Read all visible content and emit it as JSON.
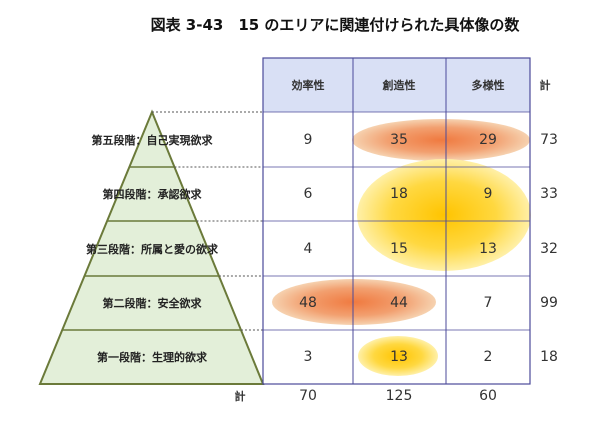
{
  "chart_data": {
    "type": "table",
    "title": "図表 3-43　15 のエリアに関連付けられた具体像の数",
    "columns": [
      "効率性",
      "創造性",
      "多様性"
    ],
    "total_label": "計",
    "rows": [
      {
        "label": "第五段階：自己実現欲求",
        "values": [
          9,
          35,
          29
        ],
        "total": 73
      },
      {
        "label": "第四段階：承認欲求",
        "values": [
          6,
          18,
          9
        ],
        "total": 33
      },
      {
        "label": "第三段階：所属と愛の欲求",
        "values": [
          4,
          15,
          13
        ],
        "total": 32
      },
      {
        "label": "第二段階：安全欲求",
        "values": [
          48,
          44,
          7
        ],
        "total": 99
      },
      {
        "label": "第一段階：生理的欲求",
        "values": [
          3,
          13,
          2
        ],
        "total": 18
      }
    ],
    "column_totals": [
      70,
      125,
      60
    ],
    "highlights": [
      {
        "cells": [
          "第五段階 創造性",
          "第五段階 多様性"
        ],
        "color": "#f08a50"
      },
      {
        "cells": [
          "第四段階 創造性",
          "第四段階 多様性",
          "第三段階 創造性",
          "第三段階 多様性"
        ],
        "color": "#ffcc00"
      },
      {
        "cells": [
          "第二段階 効率性",
          "第二段階 創造性"
        ],
        "color": "#f08a50"
      },
      {
        "cells": [
          "第一段階 創造性"
        ],
        "color": "#ffcc00"
      }
    ],
    "colors": {
      "header_fill": "#d9e0f5",
      "grid": "#4b4a9a",
      "pyramid_fill": "#e3efd9",
      "pyramid_stroke": "#6b7a3a"
    }
  }
}
